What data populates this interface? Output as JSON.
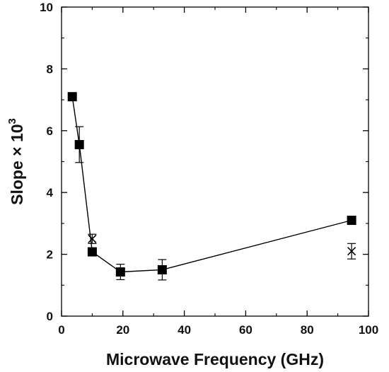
{
  "chart_data": {
    "type": "scatter",
    "title": "",
    "xlabel": "Microwave Frequency (GHz)",
    "ylabel": {
      "main": "Slope × 10",
      "exponent": "3"
    },
    "xlim": [
      0,
      100
    ],
    "ylim": [
      0,
      10
    ],
    "x_ticks": [
      0,
      20,
      40,
      60,
      80,
      100
    ],
    "y_ticks": [
      0,
      2,
      4,
      6,
      8,
      10
    ],
    "grid": false,
    "legend": "none",
    "series": [
      {
        "marker": "filled-square",
        "connected": true,
        "color": "#000000",
        "points": [
          {
            "x": 3.5,
            "y": 7.1,
            "err": 0.05
          },
          {
            "x": 5.8,
            "y": 5.55,
            "err": 0.58
          },
          {
            "x": 10,
            "y": 2.08,
            "err": 0.1
          },
          {
            "x": 19.2,
            "y": 1.43,
            "err": 0.25
          },
          {
            "x": 32.8,
            "y": 1.5,
            "err": 0.33
          },
          {
            "x": 94.5,
            "y": 3.1,
            "err": 0.08
          }
        ]
      },
      {
        "marker": "cross",
        "connected": false,
        "color": "#000000",
        "points": [
          {
            "x": 10,
            "y": 2.5,
            "err": 0.15
          },
          {
            "x": 94.5,
            "y": 2.1,
            "err": 0.25
          }
        ]
      }
    ]
  }
}
